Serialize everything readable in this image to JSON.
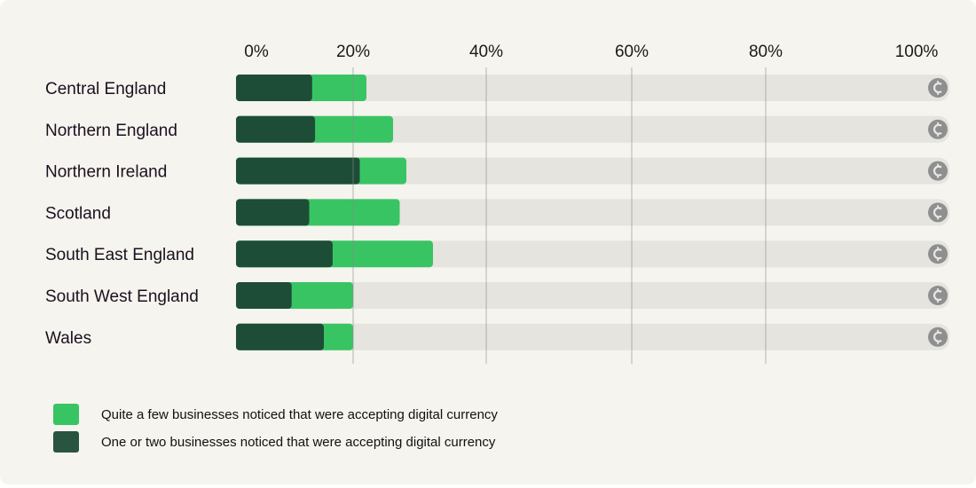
{
  "chart_data": {
    "type": "bar",
    "orientation": "horizontal",
    "stacked": false,
    "categories": [
      "Central England",
      "Northern England",
      "Northern Ireland",
      "Scotland",
      "South East England",
      "South West England",
      "Wales"
    ],
    "series": [
      {
        "name": "Quite a few businesses noticed that were accepting digital currency",
        "values": [
          22,
          26,
          28,
          27,
          32,
          20,
          20
        ],
        "color": "#39c463"
      },
      {
        "name": "One or two businesses noticed that were accepting digital currency",
        "values": [
          13,
          13.5,
          21,
          12.5,
          16.5,
          9.5,
          15
        ],
        "color": "#1e4d37"
      }
    ],
    "xlim": [
      0,
      100
    ],
    "x_ticks": [
      "0%",
      "20%",
      "40%",
      "60%",
      "80%",
      "100%"
    ],
    "x_tick_values": [
      0,
      20,
      40,
      60,
      80,
      100
    ],
    "grid": true,
    "track_color": "#e5e4de",
    "end_icon": "digital-currency-coin-icon",
    "legend_position": "bottom-left"
  },
  "legend": {
    "items": [
      {
        "label": "Quite a few businesses noticed that were accepting digital currency",
        "color": "#39c463"
      },
      {
        "label": "One or two businesses noticed that were accepting digital currency",
        "color": "#29543f"
      }
    ]
  }
}
